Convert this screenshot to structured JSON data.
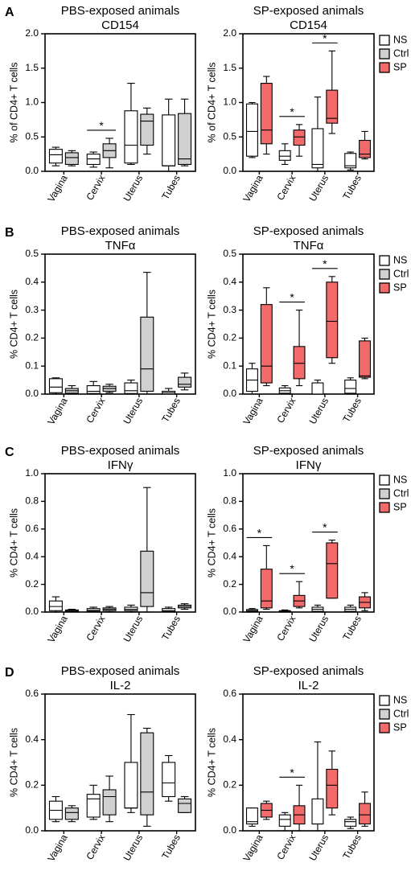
{
  "colors": {
    "NS": "#ffffff",
    "Ctrl": "#d0d0d0",
    "SP": "#f26a6a",
    "line": "#000000"
  },
  "chart_data": [
    {
      "type": "box",
      "panel": "A",
      "title": "PBS-exposed animals",
      "subtitle": "CD154",
      "ylabel": "% of CD4+ T cells",
      "ylim": [
        0,
        2.0
      ],
      "yticks": [
        "0.0",
        "0.5",
        "1.0",
        "1.5",
        "2.0"
      ],
      "categories": [
        "Vagina",
        "Cervix",
        "Uterus",
        "Tubes"
      ],
      "series": [
        {
          "name": "NS",
          "boxes": [
            [
              0.08,
              0.12,
              0.24,
              0.32,
              0.35
            ],
            [
              0.06,
              0.1,
              0.18,
              0.25,
              0.28
            ],
            [
              0.1,
              0.12,
              0.38,
              0.88,
              1.28
            ],
            [
              0.0,
              0.08,
              0.08,
              0.82,
              1.05
            ]
          ]
        },
        {
          "name": "Ctrl",
          "boxes": [
            [
              0.08,
              0.1,
              0.2,
              0.27,
              0.3
            ],
            [
              0.05,
              0.2,
              0.3,
              0.4,
              0.48
            ],
            [
              0.25,
              0.38,
              0.73,
              0.83,
              0.92
            ],
            [
              0.08,
              0.1,
              0.18,
              0.84,
              1.05
            ]
          ]
        }
      ],
      "annotations": [
        {
          "category": "Cervix",
          "text": "*"
        }
      ]
    },
    {
      "type": "box",
      "panel": "",
      "title": "SP-exposed animals",
      "subtitle": "CD154",
      "ylabel": "% of CD4+ T cells",
      "ylim": [
        0,
        2.0
      ],
      "yticks": [
        "0.0",
        "0.5",
        "1.0",
        "1.5",
        "2.0"
      ],
      "categories": [
        "Vagina",
        "Cervix",
        "Uterus",
        "Tubes"
      ],
      "series": [
        {
          "name": "NS",
          "boxes": [
            [
              0.2,
              0.22,
              0.58,
              0.98,
              1.0
            ],
            [
              0.1,
              0.16,
              0.22,
              0.3,
              0.4
            ],
            [
              0.0,
              0.05,
              0.1,
              0.62,
              1.08
            ],
            [
              0.02,
              0.05,
              0.08,
              0.26,
              0.28
            ]
          ]
        },
        {
          "name": "SP",
          "boxes": [
            [
              0.25,
              0.4,
              0.6,
              1.28,
              1.38
            ],
            [
              0.22,
              0.38,
              0.5,
              0.6,
              0.68
            ],
            [
              0.55,
              0.7,
              0.77,
              1.18,
              1.75
            ],
            [
              0.18,
              0.2,
              0.25,
              0.45,
              0.58
            ]
          ]
        }
      ],
      "annotations": [
        {
          "category": "Cervix",
          "text": "*"
        },
        {
          "category": "Uterus",
          "text": "*"
        }
      ],
      "legend": [
        "NS",
        "Ctrl",
        "SP"
      ]
    },
    {
      "type": "box",
      "panel": "B",
      "title": "PBS-exposed animals",
      "subtitle": "TNFα",
      "ylabel": "% CD4+ T cells",
      "ylim": [
        0,
        0.5
      ],
      "yticks": [
        "0.0",
        "0.1",
        "0.2",
        "0.3",
        "0.4",
        "0.5"
      ],
      "categories": [
        "Vagina",
        "Cervix",
        "Uterus",
        "Tubes"
      ],
      "series": [
        {
          "name": "NS",
          "boxes": [
            [
              0.0,
              0.005,
              0.025,
              0.055,
              0.058
            ],
            [
              0.0,
              0.002,
              0.01,
              0.03,
              0.045
            ],
            [
              0.0,
              0.002,
              0.012,
              0.04,
              0.05
            ],
            [
              0.0,
              0.0,
              0.005,
              0.01,
              0.02
            ]
          ]
        },
        {
          "name": "Ctrl",
          "boxes": [
            [
              0.0,
              0.003,
              0.012,
              0.02,
              0.03
            ],
            [
              0.005,
              0.01,
              0.02,
              0.028,
              0.035
            ],
            [
              0.0,
              0.01,
              0.09,
              0.275,
              0.435
            ],
            [
              0.015,
              0.025,
              0.035,
              0.06,
              0.075
            ]
          ]
        }
      ],
      "annotations": []
    },
    {
      "type": "box",
      "panel": "",
      "title": "SP-exposed animals",
      "subtitle": "TNFα",
      "ylabel": "% CD4+ T cells",
      "ylim": [
        0,
        0.5
      ],
      "yticks": [
        "0.0",
        "0.1",
        "0.2",
        "0.3",
        "0.4",
        "0.5"
      ],
      "categories": [
        "Vagina",
        "Cervix",
        "Uterus",
        "Tubes"
      ],
      "series": [
        {
          "name": "NS",
          "boxes": [
            [
              0.0,
              0.01,
              0.05,
              0.09,
              0.11
            ],
            [
              0.0,
              0.003,
              0.012,
              0.022,
              0.03
            ],
            [
              0.0,
              0.0,
              0.0,
              0.04,
              0.05
            ],
            [
              0.0,
              0.003,
              0.02,
              0.05,
              0.058
            ]
          ]
        },
        {
          "name": "SP",
          "boxes": [
            [
              0.03,
              0.04,
              0.1,
              0.32,
              0.38
            ],
            [
              0.03,
              0.055,
              0.11,
              0.17,
              0.3
            ],
            [
              0.11,
              0.13,
              0.26,
              0.4,
              0.42
            ],
            [
              0.055,
              0.06,
              0.065,
              0.19,
              0.2
            ]
          ]
        }
      ],
      "annotations": [
        {
          "category": "Cervix",
          "text": "*"
        },
        {
          "category": "Uterus",
          "text": "*"
        }
      ],
      "legend": [
        "NS",
        "Ctrl",
        "SP"
      ]
    },
    {
      "type": "box",
      "panel": "C",
      "title": "PBS-exposed animals",
      "subtitle": "IFNγ",
      "ylabel": "% CD4+ T cells",
      "ylim": [
        0,
        1.0
      ],
      "yticks": [
        "0.0",
        "0.2",
        "0.4",
        "0.6",
        "0.8",
        "1.0"
      ],
      "categories": [
        "Vagina",
        "Cervix",
        "Uterus",
        "Tubes"
      ],
      "series": [
        {
          "name": "NS",
          "boxes": [
            [
              0.0,
              0.01,
              0.04,
              0.08,
              0.11
            ],
            [
              0.0,
              0.005,
              0.012,
              0.025,
              0.035
            ],
            [
              0.0,
              0.01,
              0.02,
              0.035,
              0.05
            ],
            [
              0.0,
              0.003,
              0.01,
              0.025,
              0.035
            ]
          ]
        },
        {
          "name": "Ctrl",
          "boxes": [
            [
              0.0,
              0.003,
              0.008,
              0.015,
              0.02
            ],
            [
              0.0,
              0.01,
              0.02,
              0.03,
              0.04
            ],
            [
              0.0,
              0.04,
              0.14,
              0.44,
              0.9
            ],
            [
              0.02,
              0.03,
              0.04,
              0.05,
              0.06
            ]
          ]
        }
      ],
      "annotations": []
    },
    {
      "type": "box",
      "panel": "",
      "title": "SP-exposed animals",
      "subtitle": "IFNγ",
      "ylabel": "% CD4+ T cells",
      "ylim": [
        0,
        1.0
      ],
      "yticks": [
        "0.0",
        "0.2",
        "0.4",
        "0.6",
        "0.8",
        "1.0"
      ],
      "categories": [
        "Vagina",
        "Cervix",
        "Uterus",
        "Tubes"
      ],
      "series": [
        {
          "name": "NS",
          "boxes": [
            [
              0.0,
              0.003,
              0.01,
              0.018,
              0.025
            ],
            [
              0.0,
              0.0,
              0.005,
              0.01,
              0.015
            ],
            [
              0.0,
              0.005,
              0.02,
              0.035,
              0.05
            ],
            [
              0.0,
              0.005,
              0.02,
              0.035,
              0.05
            ]
          ]
        },
        {
          "name": "SP",
          "boxes": [
            [
              0.02,
              0.03,
              0.08,
              0.31,
              0.48
            ],
            [
              0.03,
              0.04,
              0.08,
              0.12,
              0.22
            ],
            [
              0.1,
              0.1,
              0.35,
              0.5,
              0.52
            ],
            [
              0.01,
              0.03,
              0.07,
              0.11,
              0.14
            ]
          ]
        }
      ],
      "annotations": [
        {
          "category": "Vagina",
          "text": "*"
        },
        {
          "category": "Cervix",
          "text": "*"
        },
        {
          "category": "Uterus",
          "text": "*"
        }
      ],
      "legend": [
        "NS",
        "Ctrl",
        "SP"
      ]
    },
    {
      "type": "box",
      "panel": "D",
      "title": "PBS-exposed animals",
      "subtitle": "IL-2",
      "ylabel": "% CD4+ T cells",
      "ylim": [
        0,
        0.6
      ],
      "yticks": [
        "0.0",
        "0.2",
        "0.4",
        "0.6"
      ],
      "categories": [
        "Vagina",
        "Cervix",
        "Uterus",
        "Tubes"
      ],
      "series": [
        {
          "name": "NS",
          "boxes": [
            [
              0.04,
              0.05,
              0.09,
              0.13,
              0.15
            ],
            [
              0.05,
              0.06,
              0.14,
              0.16,
              0.2
            ],
            [
              0.08,
              0.1,
              0.1,
              0.3,
              0.51
            ],
            [
              0.13,
              0.15,
              0.21,
              0.3,
              0.33
            ]
          ]
        },
        {
          "name": "Ctrl",
          "boxes": [
            [
              0.04,
              0.05,
              0.08,
              0.1,
              0.11
            ],
            [
              0.04,
              0.07,
              0.15,
              0.18,
              0.24
            ],
            [
              0.02,
              0.07,
              0.17,
              0.43,
              0.45
            ],
            [
              0.08,
              0.08,
              0.12,
              0.14,
              0.15
            ]
          ]
        }
      ],
      "annotations": []
    },
    {
      "type": "box",
      "panel": "",
      "title": "SP-exposed animals",
      "subtitle": "IL-2",
      "ylabel": "% CD4+ T cells",
      "ylim": [
        0,
        0.6
      ],
      "yticks": [
        "0.0",
        "0.2",
        "0.4",
        "0.6"
      ],
      "categories": [
        "Vagina",
        "Cervix",
        "Uterus",
        "Tubes"
      ],
      "series": [
        {
          "name": "NS",
          "boxes": [
            [
              0.02,
              0.03,
              0.04,
              0.1,
              0.1
            ],
            [
              0.0,
              0.02,
              0.05,
              0.07,
              0.08
            ],
            [
              0.0,
              0.03,
              0.03,
              0.14,
              0.39
            ],
            [
              0.01,
              0.02,
              0.04,
              0.05,
              0.06
            ]
          ]
        },
        {
          "name": "SP",
          "boxes": [
            [
              0.05,
              0.06,
              0.09,
              0.12,
              0.13
            ],
            [
              0.0,
              0.03,
              0.07,
              0.11,
              0.2
            ],
            [
              0.07,
              0.1,
              0.2,
              0.27,
              0.35
            ],
            [
              0.02,
              0.03,
              0.07,
              0.12,
              0.17
            ]
          ]
        }
      ],
      "annotations": [
        {
          "category": "Cervix",
          "text": "*"
        }
      ],
      "legend": [
        "NS",
        "Ctrl",
        "SP"
      ]
    }
  ]
}
